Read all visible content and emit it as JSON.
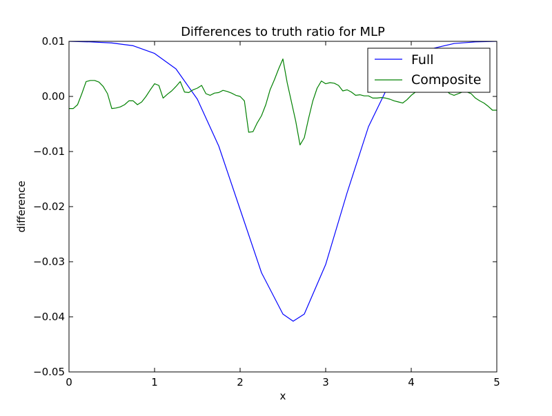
{
  "chart_data": {
    "type": "line",
    "title": "Differences to truth ratio for MLP",
    "xlabel": "x",
    "ylabel": "difference",
    "xlim": [
      0,
      5
    ],
    "ylim": [
      -0.05,
      0.01
    ],
    "xticks": [
      0,
      1,
      2,
      3,
      4,
      5
    ],
    "xtick_labels": [
      "0",
      "1",
      "2",
      "3",
      "4",
      "5"
    ],
    "yticks": [
      0.01,
      0.0,
      -0.01,
      -0.02,
      -0.03,
      -0.04,
      -0.05
    ],
    "ytick_labels": [
      "0.01",
      "0.00",
      "−0.01",
      "−0.02",
      "−0.03",
      "−0.04",
      "−0.05"
    ],
    "grid": false,
    "legend_position": "top-right",
    "series": [
      {
        "name": "Full",
        "color": "#0000ff",
        "x": [
          0.0,
          0.25,
          0.5,
          0.75,
          1.0,
          1.25,
          1.5,
          1.75,
          2.0,
          2.25,
          2.5,
          2.62,
          2.75,
          3.0,
          3.25,
          3.5,
          3.75,
          4.0,
          4.25,
          4.5,
          4.75,
          5.0
        ],
        "y": [
          0.01,
          0.0099,
          0.0097,
          0.0092,
          0.0078,
          0.005,
          -0.0005,
          -0.009,
          -0.0205,
          -0.032,
          -0.0395,
          -0.0408,
          -0.0395,
          -0.0305,
          -0.0175,
          -0.0055,
          0.0025,
          0.0068,
          0.0087,
          0.0096,
          0.0099,
          0.01
        ]
      },
      {
        "name": "Composite",
        "color": "#008000",
        "x": [
          0.0,
          0.05,
          0.1,
          0.15,
          0.2,
          0.25,
          0.3,
          0.35,
          0.4,
          0.45,
          0.5,
          0.55,
          0.6,
          0.65,
          0.7,
          0.75,
          0.8,
          0.85,
          0.9,
          0.95,
          1.0,
          1.05,
          1.1,
          1.15,
          1.2,
          1.25,
          1.3,
          1.35,
          1.4,
          1.45,
          1.5,
          1.55,
          1.6,
          1.65,
          1.7,
          1.75,
          1.8,
          1.85,
          1.9,
          1.95,
          2.0,
          2.05,
          2.1,
          2.15,
          2.2,
          2.25,
          2.3,
          2.35,
          2.4,
          2.45,
          2.5,
          2.55,
          2.6,
          2.65,
          2.7,
          2.75,
          2.8,
          2.85,
          2.9,
          2.95,
          3.0,
          3.05,
          3.1,
          3.15,
          3.2,
          3.25,
          3.3,
          3.35,
          3.4,
          3.45,
          3.5,
          3.55,
          3.6,
          3.65,
          3.7,
          3.75,
          3.8,
          3.85,
          3.9,
          3.95,
          4.0,
          4.05,
          4.1,
          4.15,
          4.2,
          4.25,
          4.3,
          4.35,
          4.4,
          4.45,
          4.5,
          4.55,
          4.6,
          4.65,
          4.7,
          4.75,
          4.8,
          4.85,
          4.9,
          4.95,
          5.0
        ],
        "y": [
          -0.0022,
          -0.0022,
          -0.0015,
          0.0005,
          0.0027,
          0.0029,
          0.0029,
          0.0026,
          0.0018,
          0.0005,
          -0.0022,
          -0.0021,
          -0.0019,
          -0.0015,
          -0.0008,
          -0.0008,
          -0.0015,
          -0.001,
          0.0,
          0.0012,
          0.0023,
          0.002,
          -0.0003,
          0.0004,
          0.001,
          0.0018,
          0.0027,
          0.0008,
          0.0007,
          0.0012,
          0.0015,
          0.002,
          0.0005,
          0.0002,
          0.0006,
          0.0007,
          0.0011,
          0.0009,
          0.0006,
          0.0002,
          0.0,
          -0.0008,
          -0.0065,
          -0.0064,
          -0.0048,
          -0.0035,
          -0.0015,
          0.0012,
          0.003,
          0.005,
          0.0068,
          0.0025,
          -0.001,
          -0.0045,
          -0.0088,
          -0.0075,
          -0.004,
          -0.0008,
          0.0015,
          0.0028,
          0.0023,
          0.0025,
          0.0024,
          0.002,
          0.001,
          0.0012,
          0.0008,
          0.0002,
          0.0003,
          0.0001,
          0.0001,
          -0.0003,
          -0.0003,
          -0.0002,
          -0.0003,
          -0.0005,
          -0.0008,
          -0.001,
          -0.0012,
          -0.0006,
          0.0002,
          0.0008,
          0.0012,
          0.0015,
          0.002,
          0.0025,
          0.0028,
          0.0022,
          0.0012,
          0.0005,
          0.0002,
          0.0005,
          0.0008,
          0.0008,
          0.0005,
          -0.0003,
          -0.0008,
          -0.0012,
          -0.0018,
          -0.0025,
          -0.0025
        ]
      }
    ]
  }
}
